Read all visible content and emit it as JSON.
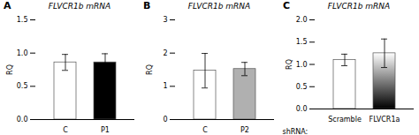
{
  "chart_data": [
    {
      "type": "bar",
      "panel_label": "A",
      "title": "FLVCR1b mRNA",
      "categories": [
        "C",
        "P1"
      ],
      "values": [
        0.86,
        0.86
      ],
      "errors": [
        0.12,
        0.13
      ],
      "colors": [
        "white",
        "black"
      ],
      "ylabel": "RQ",
      "ylim": [
        0,
        1.5
      ],
      "yticks": [
        {
          "value": 0.0,
          "label": "0.0"
        },
        0.5,
        {
          "value": 1.0,
          "label": "1.0"
        },
        1.5
      ]
    },
    {
      "type": "bar",
      "panel_label": "B",
      "title": "FLVCR1b mRNA",
      "categories": [
        "C",
        "P2"
      ],
      "values": [
        1.47,
        1.52
      ],
      "errors": [
        0.52,
        0.2
      ],
      "colors": [
        "white",
        "#b0b0b0"
      ],
      "ylabel": "RQ",
      "ylim": [
        0,
        3
      ],
      "yticks": [
        0,
        1,
        2,
        3
      ]
    },
    {
      "type": "bar",
      "panel_label": "C",
      "title": "FLVCR1b mRNA",
      "categories": [
        "Scramble",
        "FLVCR1a"
      ],
      "values": [
        1.1,
        1.25
      ],
      "errors": [
        0.13,
        0.32
      ],
      "colors": [
        "white",
        "gradient"
      ],
      "ylabel": "RQ",
      "xlabel": "shRNA:",
      "ylim": [
        0,
        2.0
      ],
      "yticks": [
        {
          "value": 0.0,
          "label": "0.0"
        },
        0.5,
        {
          "value": 1.0,
          "label": "1.0"
        },
        1.5,
        {
          "value": 2.0,
          "label": "2.0"
        }
      ]
    }
  ]
}
